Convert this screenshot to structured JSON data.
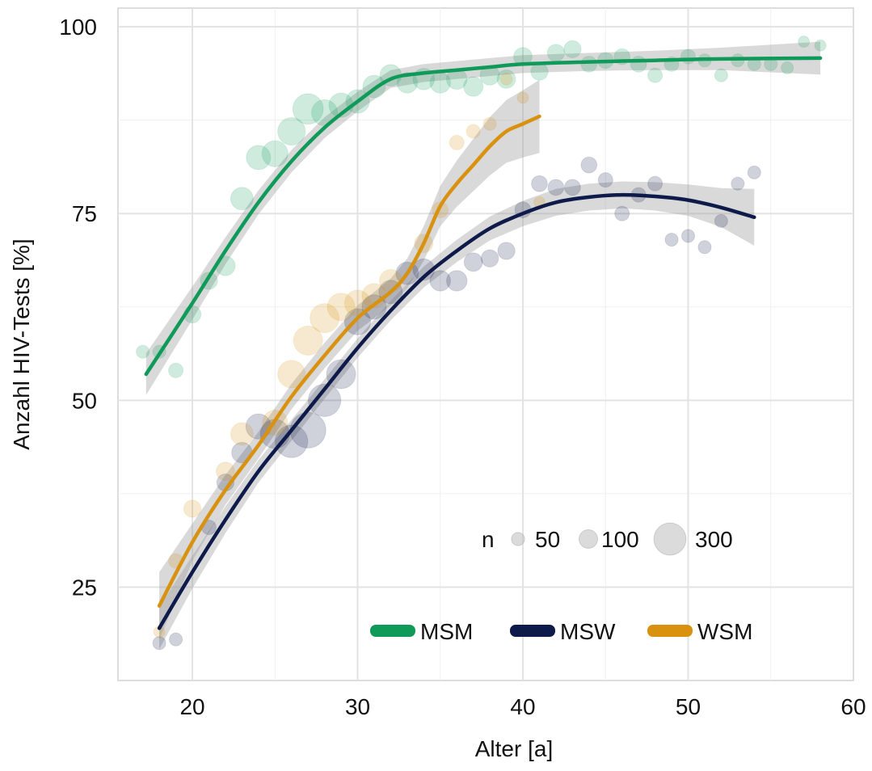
{
  "chart_data": {
    "type": "scatter",
    "xlabel": "Alter [a]",
    "ylabel": "Anzahl HIV-Tests [%]",
    "xlim": [
      15.5,
      60
    ],
    "ylim": [
      12.5,
      102.5
    ],
    "x_ticks": [
      20,
      30,
      40,
      50,
      60
    ],
    "y_ticks": [
      25,
      50,
      75,
      100
    ],
    "grid": true,
    "size_legend": {
      "title": "n",
      "entries": [
        {
          "label": "50",
          "n": 50
        },
        {
          "label": "100",
          "n": 100
        },
        {
          "label": "300",
          "n": 300
        }
      ]
    },
    "color_legend_position": "bottom-right",
    "series": [
      {
        "name": "MSM",
        "color": "#0f9a5a",
        "points": [
          {
            "x": 17,
            "y": 56.5,
            "n": 40
          },
          {
            "x": 18,
            "y": 56.5,
            "n": 40
          },
          {
            "x": 19,
            "y": 54,
            "n": 50
          },
          {
            "x": 20,
            "y": 61.5,
            "n": 70
          },
          {
            "x": 21,
            "y": 66,
            "n": 70
          },
          {
            "x": 22,
            "y": 68,
            "n": 90
          },
          {
            "x": 23,
            "y": 77,
            "n": 120
          },
          {
            "x": 24,
            "y": 82.5,
            "n": 140
          },
          {
            "x": 25,
            "y": 83,
            "n": 160
          },
          {
            "x": 26,
            "y": 86,
            "n": 180
          },
          {
            "x": 27,
            "y": 89,
            "n": 220
          },
          {
            "x": 28,
            "y": 88.5,
            "n": 160
          },
          {
            "x": 29,
            "y": 89.5,
            "n": 140
          },
          {
            "x": 30,
            "y": 90,
            "n": 130
          },
          {
            "x": 31,
            "y": 92,
            "n": 120
          },
          {
            "x": 32,
            "y": 93.5,
            "n": 110
          },
          {
            "x": 33,
            "y": 92.5,
            "n": 100
          },
          {
            "x": 34,
            "y": 93,
            "n": 110
          },
          {
            "x": 35,
            "y": 92.5,
            "n": 100
          },
          {
            "x": 36,
            "y": 93,
            "n": 100
          },
          {
            "x": 37,
            "y": 92,
            "n": 90
          },
          {
            "x": 38,
            "y": 93.5,
            "n": 90
          },
          {
            "x": 39,
            "y": 93,
            "n": 80
          },
          {
            "x": 40,
            "y": 96,
            "n": 80
          },
          {
            "x": 41,
            "y": 94,
            "n": 70
          },
          {
            "x": 42,
            "y": 96.5,
            "n": 70
          },
          {
            "x": 43,
            "y": 97,
            "n": 70
          },
          {
            "x": 44,
            "y": 95,
            "n": 60
          },
          {
            "x": 45,
            "y": 95.5,
            "n": 60
          },
          {
            "x": 46,
            "y": 96,
            "n": 60
          },
          {
            "x": 47,
            "y": 95,
            "n": 60
          },
          {
            "x": 48,
            "y": 93.5,
            "n": 50
          },
          {
            "x": 49,
            "y": 95,
            "n": 50
          },
          {
            "x": 50,
            "y": 96,
            "n": 50
          },
          {
            "x": 51,
            "y": 95.5,
            "n": 40
          },
          {
            "x": 52,
            "y": 93.5,
            "n": 40
          },
          {
            "x": 53,
            "y": 95.5,
            "n": 40
          },
          {
            "x": 54,
            "y": 95,
            "n": 40
          },
          {
            "x": 55,
            "y": 95,
            "n": 40
          },
          {
            "x": 56,
            "y": 94.5,
            "n": 35
          },
          {
            "x": 57,
            "y": 98,
            "n": 30
          },
          {
            "x": 58,
            "y": 97.5,
            "n": 30
          }
        ],
        "curve": [
          [
            17.2,
            53.5
          ],
          [
            20,
            63
          ],
          [
            22,
            70
          ],
          [
            24,
            76.5
          ],
          [
            26,
            82
          ],
          [
            28,
            86.5
          ],
          [
            30,
            90
          ],
          [
            32,
            93
          ],
          [
            34,
            93.8
          ],
          [
            36,
            94.2
          ],
          [
            38,
            94.6
          ],
          [
            40,
            95
          ],
          [
            44,
            95.3
          ],
          [
            48,
            95.5
          ],
          [
            52,
            95.7
          ],
          [
            58,
            95.8
          ]
        ],
        "ci_halfwidth": [
          2.8,
          2.2,
          1.8,
          1.6,
          1.5,
          1.4,
          1.3,
          1.2,
          1.2,
          1.2,
          1.2,
          1.2,
          1.2,
          1.3,
          1.5,
          2.2
        ]
      },
      {
        "name": "MSW",
        "color": "#0d1a4a",
        "points": [
          {
            "x": 18,
            "y": 17.5,
            "n": 40
          },
          {
            "x": 19,
            "y": 18,
            "n": 40
          },
          {
            "x": 21,
            "y": 33,
            "n": 50
          },
          {
            "x": 22,
            "y": 39,
            "n": 70
          },
          {
            "x": 23,
            "y": 43,
            "n": 100
          },
          {
            "x": 24,
            "y": 46.5,
            "n": 150
          },
          {
            "x": 25,
            "y": 45.5,
            "n": 200
          },
          {
            "x": 26,
            "y": 44.5,
            "n": 250
          },
          {
            "x": 27,
            "y": 46,
            "n": 300
          },
          {
            "x": 28,
            "y": 50,
            "n": 250
          },
          {
            "x": 29,
            "y": 53.5,
            "n": 200
          },
          {
            "x": 30,
            "y": 60.5,
            "n": 160
          },
          {
            "x": 31,
            "y": 62.5,
            "n": 140
          },
          {
            "x": 32,
            "y": 64.5,
            "n": 130
          },
          {
            "x": 33,
            "y": 67,
            "n": 120
          },
          {
            "x": 34,
            "y": 67.5,
            "n": 110
          },
          {
            "x": 35,
            "y": 66,
            "n": 100
          },
          {
            "x": 36,
            "y": 66,
            "n": 100
          },
          {
            "x": 37,
            "y": 68.5,
            "n": 80
          },
          {
            "x": 38,
            "y": 69,
            "n": 70
          },
          {
            "x": 39,
            "y": 70,
            "n": 70
          },
          {
            "x": 40,
            "y": 75.5,
            "n": 60
          },
          {
            "x": 41,
            "y": 79,
            "n": 60
          },
          {
            "x": 42,
            "y": 78.5,
            "n": 60
          },
          {
            "x": 43,
            "y": 78.5,
            "n": 60
          },
          {
            "x": 44,
            "y": 81.5,
            "n": 60
          },
          {
            "x": 45,
            "y": 79.5,
            "n": 50
          },
          {
            "x": 46,
            "y": 75,
            "n": 50
          },
          {
            "x": 47,
            "y": 77.5,
            "n": 50
          },
          {
            "x": 48,
            "y": 79,
            "n": 50
          },
          {
            "x": 49,
            "y": 71.5,
            "n": 40
          },
          {
            "x": 50,
            "y": 72,
            "n": 40
          },
          {
            "x": 51,
            "y": 70.5,
            "n": 40
          },
          {
            "x": 52,
            "y": 74,
            "n": 40
          },
          {
            "x": 53,
            "y": 79,
            "n": 40
          },
          {
            "x": 54,
            "y": 80.5,
            "n": 40
          }
        ],
        "curve": [
          [
            18,
            19.5
          ],
          [
            20,
            27
          ],
          [
            22,
            34
          ],
          [
            24,
            40.5
          ],
          [
            26,
            46
          ],
          [
            28,
            51.5
          ],
          [
            30,
            57
          ],
          [
            32,
            62
          ],
          [
            34,
            66.5
          ],
          [
            36,
            70
          ],
          [
            38,
            73
          ],
          [
            40,
            75
          ],
          [
            42,
            76.5
          ],
          [
            44,
            77.2
          ],
          [
            46,
            77.5
          ],
          [
            48,
            77.3
          ],
          [
            50,
            76.8
          ],
          [
            52,
            75.8
          ],
          [
            54,
            74.5
          ]
        ],
        "ci_halfwidth": [
          2.8,
          2.2,
          1.8,
          1.5,
          1.4,
          1.3,
          1.3,
          1.3,
          1.4,
          1.5,
          1.6,
          1.7,
          1.8,
          1.8,
          1.8,
          1.9,
          2.1,
          2.6,
          3.8
        ]
      },
      {
        "name": "WSM",
        "color": "#d99110",
        "points": [
          {
            "x": 18,
            "y": 19,
            "n": 30
          },
          {
            "x": 19,
            "y": 28.5,
            "n": 50
          },
          {
            "x": 20,
            "y": 35.5,
            "n": 70
          },
          {
            "x": 22,
            "y": 40.5,
            "n": 80
          },
          {
            "x": 23,
            "y": 45.5,
            "n": 120
          },
          {
            "x": 25,
            "y": 47,
            "n": 150
          },
          {
            "x": 26,
            "y": 53.5,
            "n": 180
          },
          {
            "x": 27,
            "y": 58,
            "n": 200
          },
          {
            "x": 28,
            "y": 61,
            "n": 200
          },
          {
            "x": 29,
            "y": 62.5,
            "n": 180
          },
          {
            "x": 30,
            "y": 63,
            "n": 160
          },
          {
            "x": 31,
            "y": 64,
            "n": 140
          },
          {
            "x": 32,
            "y": 66,
            "n": 120
          },
          {
            "x": 34,
            "y": 71,
            "n": 80
          },
          {
            "x": 35,
            "y": 75.5,
            "n": 60
          },
          {
            "x": 36,
            "y": 84.5,
            "n": 50
          },
          {
            "x": 37,
            "y": 86,
            "n": 45
          },
          {
            "x": 38,
            "y": 87,
            "n": 40
          },
          {
            "x": 39,
            "y": 93,
            "n": 35
          },
          {
            "x": 40,
            "y": 90.5,
            "n": 30
          },
          {
            "x": 41,
            "y": 76.5,
            "n": 30
          }
        ],
        "curve": [
          [
            18,
            22.5
          ],
          [
            20,
            31
          ],
          [
            22,
            38
          ],
          [
            24,
            44
          ],
          [
            26,
            50.5
          ],
          [
            28,
            56
          ],
          [
            30,
            61
          ],
          [
            32,
            64.5
          ],
          [
            33,
            67
          ],
          [
            34,
            71
          ],
          [
            35,
            76
          ],
          [
            36,
            79
          ],
          [
            37,
            81.5
          ],
          [
            38,
            84
          ],
          [
            39,
            86
          ],
          [
            40,
            87
          ],
          [
            41,
            88
          ]
        ],
        "ci_halfwidth": [
          4.5,
          2.5,
          2.0,
          1.8,
          1.7,
          1.7,
          1.7,
          1.8,
          2.0,
          2.3,
          2.7,
          3.1,
          3.5,
          3.9,
          4.2,
          4.5,
          4.9
        ]
      }
    ]
  }
}
